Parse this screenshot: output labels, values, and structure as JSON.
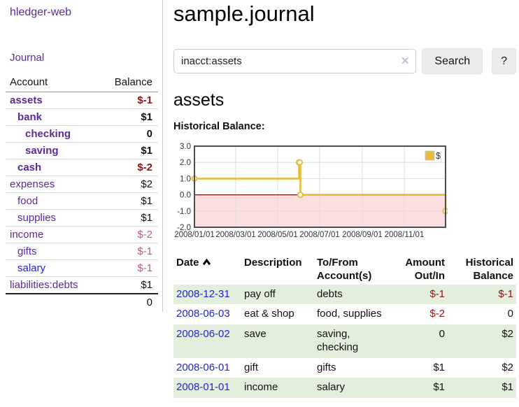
{
  "app": {
    "brand": "hledger-web",
    "nav_journal": "Journal"
  },
  "colors": {
    "link_purple": "#5b2a9d",
    "link_blue": "#2323d6",
    "negative_strong": "#8b1717",
    "negative_soft": "#b5666e",
    "row_shade_green": "#e3efdc",
    "chart_line_gold": "#e8bc3d"
  },
  "sidebar": {
    "headers": {
      "account": "Account",
      "balance": "Balance"
    },
    "accounts": [
      {
        "name": "assets",
        "indent": 1,
        "balance": "$-1",
        "bold": true,
        "neg": "strong",
        "link": "purple"
      },
      {
        "name": "bank",
        "indent": 2,
        "balance": "$1",
        "bold": true,
        "neg": "none",
        "link": "purple"
      },
      {
        "name": "checking",
        "indent": 3,
        "balance": "0",
        "bold": true,
        "neg": "none",
        "link": "purple"
      },
      {
        "name": "saving",
        "indent": 3,
        "balance": "$1",
        "bold": true,
        "neg": "none",
        "link": "purple"
      },
      {
        "name": "cash",
        "indent": 2,
        "balance": "$-2",
        "bold": true,
        "neg": "strong",
        "link": "purple"
      },
      {
        "name": "expenses",
        "indent": 1,
        "balance": "$2",
        "bold": false,
        "neg": "none",
        "link": "purple"
      },
      {
        "name": "food",
        "indent": 2,
        "balance": "$1",
        "bold": false,
        "neg": "none",
        "link": "purple"
      },
      {
        "name": "supplies",
        "indent": 2,
        "balance": "$1",
        "bold": false,
        "neg": "none",
        "link": "purple"
      },
      {
        "name": "income",
        "indent": 1,
        "balance": "$-2",
        "bold": false,
        "neg": "soft",
        "link": "purple"
      },
      {
        "name": "gifts",
        "indent": 2,
        "balance": "$-1",
        "bold": false,
        "neg": "soft",
        "link": "purple"
      },
      {
        "name": "salary",
        "indent": 2,
        "balance": "$-1",
        "bold": false,
        "neg": "soft",
        "link": "blue"
      },
      {
        "name": "liabilities:debts",
        "indent": 1,
        "balance": "$1",
        "bold": false,
        "neg": "none",
        "link": "purple"
      }
    ],
    "total": "0"
  },
  "header": {
    "title": "sample.journal"
  },
  "search": {
    "value": "inacct:assets",
    "clear_icon": "✕",
    "button_label": "Search",
    "help_label": "?"
  },
  "account_page": {
    "heading": "assets",
    "chart_label": "Historical Balance:"
  },
  "chart_data": {
    "type": "line",
    "step": true,
    "title": "Historical Balance:",
    "series": [
      {
        "name": "$",
        "color": "#e8bc3d",
        "points": [
          [
            "2008-01-01",
            1.0
          ],
          [
            "2008-06-01",
            2.0
          ],
          [
            "2008-06-02",
            2.0
          ],
          [
            "2008-06-03",
            0.0
          ],
          [
            "2008-12-31",
            -1.0
          ]
        ]
      }
    ],
    "ylim": [
      -2.0,
      3.0
    ],
    "yticks": [
      3.0,
      2.0,
      1.0,
      0.0,
      -1.0,
      -2.0
    ],
    "x_start": "2008-01-01",
    "x_end": "2008-12-31",
    "xticks_dates": [
      "2008-01-01",
      "2008-03-01",
      "2008-05-01",
      "2008-07-01",
      "2008-09-01",
      "2008-11-01"
    ],
    "xticks": [
      "2008/01/01",
      "2008/03/01",
      "2008/05/01",
      "2008/07/01",
      "2008/09/01",
      "2008/11/01"
    ],
    "grid": true,
    "negative_fill": "#fcdee1",
    "zero_line_color": "#7d1010",
    "legend": {
      "label": "$",
      "position": "top-right"
    }
  },
  "register": {
    "headers": [
      {
        "label": "Date",
        "sorted_asc": true
      },
      {
        "label": "Description"
      },
      {
        "label": "To/From Account(s)"
      },
      {
        "label": "Amount Out/In",
        "align": "right"
      },
      {
        "label": "Historical Balance",
        "align": "right"
      }
    ],
    "rows": [
      {
        "date": "2008-12-31",
        "description": "pay off",
        "accounts": "debts",
        "amount": "$-1",
        "amount_neg": true,
        "balance": "$-1",
        "balance_neg": true,
        "shaded": true
      },
      {
        "date": "2008-06-03",
        "description": "eat & shop",
        "accounts": "food, supplies",
        "amount": "$-2",
        "amount_neg": true,
        "balance": "0",
        "balance_neg": false,
        "shaded": false
      },
      {
        "date": "2008-06-02",
        "description": "save",
        "accounts": "saving, checking",
        "amount": "0",
        "amount_neg": false,
        "balance": "$2",
        "balance_neg": false,
        "shaded": true
      },
      {
        "date": "2008-06-01",
        "description": "gift",
        "accounts": "gifts",
        "amount": "$1",
        "amount_neg": false,
        "balance": "$2",
        "balance_neg": false,
        "shaded": false
      },
      {
        "date": "2008-01-01",
        "description": "income",
        "accounts": "salary",
        "amount": "$1",
        "amount_neg": false,
        "balance": "$1",
        "balance_neg": false,
        "shaded": true
      }
    ]
  }
}
